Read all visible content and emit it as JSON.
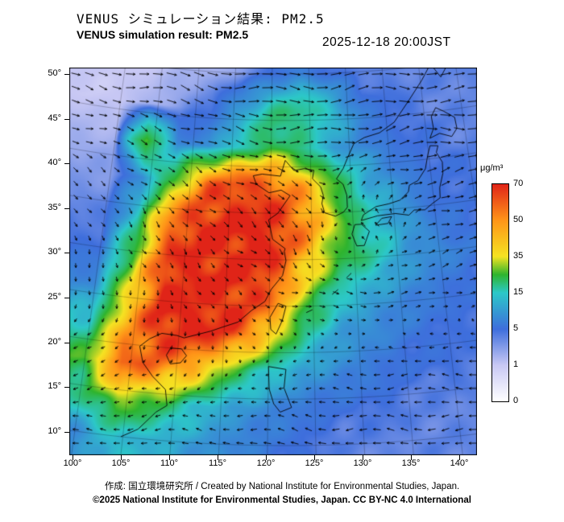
{
  "header": {
    "title_jp": "VENUS シミュレーション結果: PM2.5",
    "title_en": "VENUS simulation result: PM2.5",
    "timestamp": "2025-12-18 20:00JST"
  },
  "footer": {
    "credit": "作成: 国立環境研究所 / Created by National Institute for Environmental Studies, Japan.",
    "copyright": "©2025 National Institute for Environmental Studies, Japan. CC BY-NC 4.0 International"
  },
  "chart_data": {
    "type": "heatmap",
    "variable": "PM2.5",
    "units": "μg/m³",
    "title": "VENUS シミュレーション結果: PM2.5",
    "subtitle": "VENUS simulation result: PM2.5",
    "timestamp": "2025-12-18 20:00JST",
    "lat_ticks": [
      "50°",
      "45°",
      "40°",
      "35°",
      "30°",
      "25°",
      "20°",
      "15°",
      "10°"
    ],
    "lon_ticks": [
      "100°",
      "105°",
      "110°",
      "115°",
      "120°",
      "125°",
      "130°",
      "135°",
      "140°"
    ],
    "lat_range": [
      10,
      50
    ],
    "lon_range": [
      100,
      144
    ],
    "grid": true,
    "overlay": "wind-vectors",
    "colorbar": {
      "title": "μg/m³",
      "tick_values": [
        70,
        50,
        35,
        15,
        5,
        1,
        0
      ],
      "tick_positions": [
        1,
        0.8333,
        0.6667,
        0.5,
        0.3333,
        0.1667,
        0
      ],
      "stops": [
        {
          "v": 0,
          "p": 0,
          "c": "#ffffff"
        },
        {
          "v": 1,
          "p": 0.1667,
          "c": "#c8c8f4"
        },
        {
          "v": 5,
          "p": 0.3333,
          "c": "#3e6edc"
        },
        {
          "v": 15,
          "p": 0.5,
          "c": "#2cc8c8"
        },
        {
          "v": 25,
          "p": 0.5833,
          "c": "#2eb42e"
        },
        {
          "v": 35,
          "p": 0.6667,
          "c": "#f5e322"
        },
        {
          "v": 50,
          "p": 0.8333,
          "c": "#ff9518"
        },
        {
          "v": 70,
          "p": 1,
          "c": "#e02418"
        }
      ]
    },
    "pm25": {
      "lons": [
        100,
        104,
        108,
        112,
        116,
        120,
        124,
        128,
        132,
        136,
        140,
        144
      ],
      "lats": [
        50,
        46,
        42,
        38,
        34,
        30,
        26,
        22,
        18,
        14,
        10
      ],
      "values": [
        [
          1,
          1,
          2,
          2,
          3,
          5,
          7,
          5,
          4,
          4,
          4,
          4
        ],
        [
          1,
          2,
          3,
          5,
          10,
          18,
          20,
          14,
          6,
          5,
          4,
          4
        ],
        [
          2,
          28,
          8,
          8,
          16,
          25,
          18,
          10,
          8,
          5,
          5,
          4
        ],
        [
          3,
          8,
          25,
          55,
          65,
          60,
          45,
          25,
          12,
          8,
          5,
          5
        ],
        [
          4,
          15,
          55,
          70,
          70,
          70,
          55,
          30,
          15,
          10,
          6,
          5
        ],
        [
          5,
          25,
          65,
          70,
          70,
          70,
          45,
          25,
          18,
          10,
          8,
          6
        ],
        [
          8,
          35,
          70,
          70,
          70,
          60,
          30,
          15,
          10,
          8,
          6,
          5
        ],
        [
          15,
          45,
          70,
          70,
          65,
          40,
          18,
          10,
          8,
          6,
          5,
          5
        ],
        [
          25,
          60,
          55,
          45,
          25,
          15,
          10,
          8,
          6,
          5,
          5,
          4
        ],
        [
          18,
          30,
          25,
          15,
          10,
          8,
          6,
          5,
          5,
          4,
          4,
          4
        ],
        [
          8,
          14,
          12,
          10,
          8,
          6,
          5,
          4,
          4,
          4,
          4,
          4
        ]
      ]
    },
    "wind": {
      "lons": [
        100,
        108,
        116,
        124,
        132,
        140
      ],
      "lats": [
        50,
        42,
        34,
        26,
        18,
        10
      ],
      "u": [
        [
          8,
          9,
          10,
          10,
          10,
          10
        ],
        [
          5,
          6,
          7,
          8,
          8,
          9
        ],
        [
          2,
          3,
          4,
          2,
          -4,
          6
        ],
        [
          0,
          1,
          2,
          4,
          5,
          4
        ],
        [
          -2,
          -1,
          0,
          -2,
          -4,
          -5
        ],
        [
          -4,
          -4,
          -5,
          -6,
          -6,
          -6
        ]
      ],
      "v": [
        [
          -1,
          -2,
          -1,
          0,
          1,
          0
        ],
        [
          -2,
          -3,
          -2,
          0,
          2,
          1
        ],
        [
          -3,
          -4,
          -3,
          -6,
          3,
          2
        ],
        [
          -2,
          -3,
          -2,
          -1,
          0,
          1
        ],
        [
          -1,
          -1,
          -1,
          0,
          0,
          0
        ],
        [
          0,
          0,
          1,
          1,
          0,
          0
        ]
      ]
    }
  }
}
